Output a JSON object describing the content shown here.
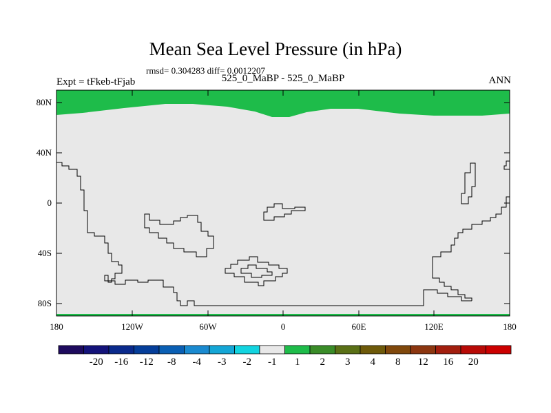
{
  "title": "Mean Sea Level Pressure (in hPa)",
  "stats_text": "rmsd= 0.304283 diff= 0.0012207",
  "expt_label": "Expt = tFkeb-tFjab",
  "center_label": "525_0_MaBP - 525_0_MaBP",
  "season_label": "ANN",
  "lat_labels": [
    "80N",
    "40N",
    "0",
    "40S",
    "80S"
  ],
  "lon_labels": [
    "180",
    "120W",
    "60W",
    "0",
    "60E",
    "120E",
    "180"
  ],
  "colorbar": {
    "colors": [
      "#1e0b5e",
      "#14137a",
      "#0a2a8c",
      "#053e9a",
      "#0a5fb4",
      "#1a8ad0",
      "#14a6d6",
      "#12d4e0",
      "#e8e8e8",
      "#1ebc4a",
      "#3a8c28",
      "#5a7016",
      "#6e5a0a",
      "#80480c",
      "#8c3610",
      "#a21e0e",
      "#b80a06",
      "#cc0000"
    ],
    "labels": [
      "-20",
      "-16",
      "-12",
      "-8",
      "-4",
      "-3",
      "-2",
      "-1",
      "1",
      "2",
      "3",
      "4",
      "8",
      "12",
      "16",
      "20"
    ]
  }
}
